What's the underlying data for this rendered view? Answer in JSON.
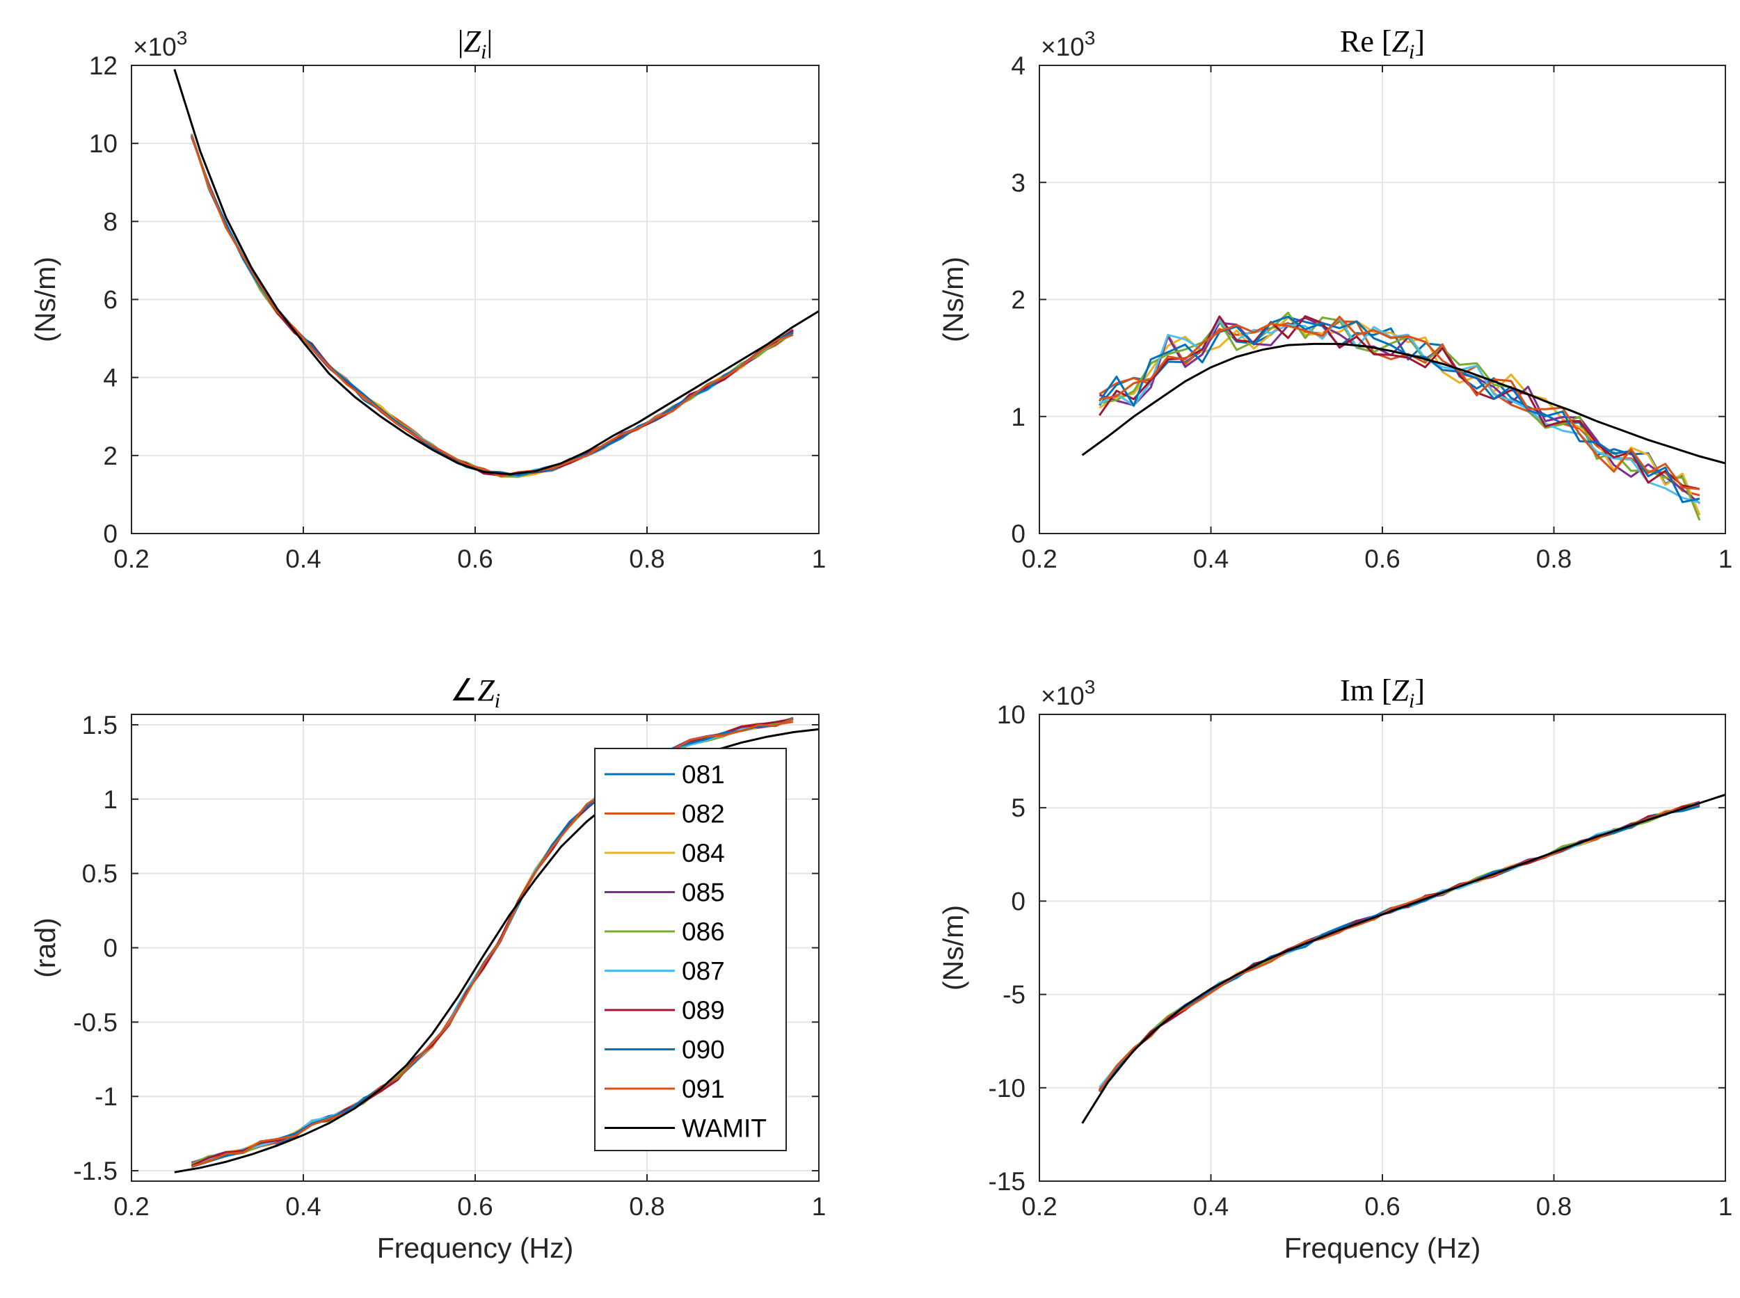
{
  "colors": {
    "081": "#0072BD",
    "082": "#D95319",
    "084": "#EDB120",
    "085": "#7E2F8E",
    "086": "#77AC30",
    "087": "#4DBEEE",
    "089": "#A2142F",
    "090": "#0072BD",
    "091": "#D95319",
    "WAMIT": "#000000",
    "grid": "#e5e5e5",
    "axis": "#262626"
  },
  "legend": {
    "entries": [
      "081",
      "082",
      "084",
      "085",
      "086",
      "087",
      "089",
      "090",
      "091",
      "WAMIT"
    ]
  },
  "chart_data": [
    {
      "id": "abs",
      "type": "line",
      "title_parts": [
        "|",
        "Z",
        "i",
        "|"
      ],
      "xlabel": "",
      "ylabel": "(Ns/m)",
      "xlim": [
        0.2,
        1
      ],
      "ylim": [
        0,
        12
      ],
      "xticks": [
        "0.2",
        "0.4",
        "0.6",
        "0.8",
        "1"
      ],
      "xtick_values": [
        0.2,
        0.4,
        0.6,
        0.8,
        1
      ],
      "yticks": [
        "0",
        "2",
        "4",
        "6",
        "8",
        "10",
        "12"
      ],
      "ytick_values": [
        0,
        2,
        4,
        6,
        8,
        10,
        12
      ],
      "multiplier": {
        "base": "×10",
        "exp": "3"
      },
      "x": [
        0.27,
        0.29,
        0.31,
        0.33,
        0.35,
        0.37,
        0.39,
        0.41,
        0.43,
        0.45,
        0.47,
        0.49,
        0.51,
        0.53,
        0.55,
        0.57,
        0.59,
        0.61,
        0.63,
        0.65,
        0.67,
        0.69,
        0.71,
        0.73,
        0.75,
        0.77,
        0.79,
        0.81,
        0.83,
        0.85,
        0.87,
        0.89,
        0.91,
        0.93,
        0.95,
        0.97
      ],
      "measured": [
        10.2,
        8.9,
        7.9,
        7.1,
        6.3,
        5.7,
        5.2,
        4.8,
        4.3,
        3.9,
        3.5,
        3.2,
        2.85,
        2.55,
        2.25,
        1.95,
        1.75,
        1.6,
        1.52,
        1.52,
        1.58,
        1.68,
        1.85,
        2.05,
        2.25,
        2.5,
        2.7,
        2.95,
        3.2,
        3.5,
        3.75,
        4.0,
        4.3,
        4.6,
        4.9,
        5.15
      ],
      "wamit": {
        "x": [
          0.25,
          0.28,
          0.31,
          0.34,
          0.37,
          0.4,
          0.43,
          0.46,
          0.49,
          0.52,
          0.55,
          0.58,
          0.61,
          0.64,
          0.67,
          0.7,
          0.73,
          0.76,
          0.79,
          0.82,
          0.85,
          0.88,
          0.91,
          0.94,
          0.97,
          1.0
        ],
        "y": [
          11.9,
          9.8,
          8.1,
          6.8,
          5.75,
          4.9,
          4.1,
          3.5,
          3.0,
          2.55,
          2.15,
          1.8,
          1.58,
          1.52,
          1.6,
          1.8,
          2.1,
          2.5,
          2.85,
          3.25,
          3.65,
          4.05,
          4.45,
          4.85,
          5.3,
          5.7
        ]
      }
    },
    {
      "id": "re",
      "type": "line",
      "title_parts": [
        "Re [",
        "Z",
        "i",
        "]"
      ],
      "xlabel": "",
      "ylabel": "(Ns/m)",
      "xlim": [
        0.2,
        1
      ],
      "ylim": [
        0,
        4
      ],
      "xticks": [
        "0.2",
        "0.4",
        "0.6",
        "0.8",
        "1"
      ],
      "xtick_values": [
        0.2,
        0.4,
        0.6,
        0.8,
        1
      ],
      "yticks": [
        "0",
        "1",
        "2",
        "3",
        "4"
      ],
      "ytick_values": [
        0,
        1,
        2,
        3,
        4
      ],
      "multiplier": {
        "base": "×10",
        "exp": "3"
      },
      "x": [
        0.27,
        0.29,
        0.31,
        0.33,
        0.35,
        0.37,
        0.39,
        0.41,
        0.43,
        0.45,
        0.47,
        0.49,
        0.51,
        0.53,
        0.55,
        0.57,
        0.59,
        0.61,
        0.63,
        0.65,
        0.67,
        0.69,
        0.71,
        0.73,
        0.75,
        0.77,
        0.79,
        0.81,
        0.83,
        0.85,
        0.87,
        0.89,
        0.91,
        0.93,
        0.95,
        0.97
      ],
      "measured": [
        1.08,
        1.25,
        1.22,
        1.35,
        1.6,
        1.55,
        1.58,
        1.72,
        1.7,
        1.72,
        1.73,
        1.76,
        1.78,
        1.76,
        1.72,
        1.7,
        1.66,
        1.62,
        1.58,
        1.55,
        1.48,
        1.42,
        1.32,
        1.25,
        1.22,
        1.15,
        1.02,
        0.95,
        0.88,
        0.75,
        0.65,
        0.62,
        0.55,
        0.48,
        0.4,
        0.25
      ],
      "wamit": {
        "x": [
          0.25,
          0.28,
          0.31,
          0.34,
          0.37,
          0.4,
          0.43,
          0.46,
          0.49,
          0.52,
          0.55,
          0.58,
          0.61,
          0.64,
          0.67,
          0.7,
          0.73,
          0.76,
          0.79,
          0.82,
          0.85,
          0.88,
          0.91,
          0.94,
          0.97,
          1.0
        ],
        "y": [
          0.67,
          0.83,
          1.0,
          1.15,
          1.3,
          1.42,
          1.51,
          1.57,
          1.61,
          1.62,
          1.62,
          1.6,
          1.56,
          1.51,
          1.45,
          1.38,
          1.3,
          1.22,
          1.13,
          1.05,
          0.96,
          0.88,
          0.8,
          0.73,
          0.66,
          0.6
        ]
      }
    },
    {
      "id": "angle",
      "type": "line",
      "title_parts": [
        "∠",
        "Z",
        "i",
        ""
      ],
      "xlabel": "Frequency (Hz)",
      "ylabel": "(rad)",
      "xlim": [
        0.2,
        1
      ],
      "ylim": [
        -1.57,
        1.57
      ],
      "xticks": [
        "0.2",
        "0.4",
        "0.6",
        "0.8",
        "1"
      ],
      "xtick_values": [
        0.2,
        0.4,
        0.6,
        0.8,
        1
      ],
      "yticks": [
        "-1.5",
        "-1",
        "-0.5",
        "0",
        "0.5",
        "1",
        "1.5"
      ],
      "ytick_values": [
        -1.5,
        -1,
        -0.5,
        0,
        0.5,
        1,
        1.5
      ],
      "multiplier": null,
      "x": [
        0.27,
        0.29,
        0.31,
        0.33,
        0.35,
        0.37,
        0.39,
        0.41,
        0.43,
        0.45,
        0.47,
        0.49,
        0.51,
        0.53,
        0.55,
        0.57,
        0.59,
        0.61,
        0.63,
        0.65,
        0.67,
        0.69,
        0.71,
        0.73,
        0.75,
        0.77,
        0.79,
        0.81,
        0.83,
        0.85,
        0.87,
        0.89,
        0.91,
        0.93,
        0.95,
        0.97
      ],
      "measured": [
        -1.46,
        -1.42,
        -1.39,
        -1.37,
        -1.32,
        -1.3,
        -1.26,
        -1.18,
        -1.15,
        -1.1,
        -1.03,
        -0.95,
        -0.87,
        -0.76,
        -0.65,
        -0.5,
        -0.3,
        -0.12,
        0.05,
        0.3,
        0.52,
        0.68,
        0.83,
        0.95,
        1.05,
        1.12,
        1.2,
        1.28,
        1.33,
        1.38,
        1.41,
        1.44,
        1.47,
        1.49,
        1.51,
        1.53
      ],
      "wamit": {
        "x": [
          0.25,
          0.28,
          0.31,
          0.34,
          0.37,
          0.4,
          0.43,
          0.46,
          0.49,
          0.52,
          0.55,
          0.58,
          0.61,
          0.64,
          0.67,
          0.7,
          0.73,
          0.76,
          0.79,
          0.82,
          0.85,
          0.88,
          0.91,
          0.94,
          0.97,
          1.0
        ],
        "y": [
          -1.51,
          -1.48,
          -1.44,
          -1.39,
          -1.33,
          -1.26,
          -1.18,
          -1.08,
          -0.95,
          -0.79,
          -0.58,
          -0.33,
          -0.05,
          0.22,
          0.46,
          0.68,
          0.85,
          0.99,
          1.1,
          1.19,
          1.27,
          1.33,
          1.38,
          1.42,
          1.45,
          1.47
        ]
      }
    },
    {
      "id": "im",
      "type": "line",
      "title_parts": [
        "Im [",
        "Z",
        "i",
        "]"
      ],
      "xlabel": "Frequency (Hz)",
      "ylabel": "(Ns/m)",
      "xlim": [
        0.2,
        1
      ],
      "ylim": [
        -15,
        10
      ],
      "xticks": [
        "0.2",
        "0.4",
        "0.6",
        "0.8",
        "1"
      ],
      "xtick_values": [
        0.2,
        0.4,
        0.6,
        0.8,
        1
      ],
      "yticks": [
        "-15",
        "-10",
        "-5",
        "0",
        "5",
        "10"
      ],
      "ytick_values": [
        -15,
        -10,
        -5,
        0,
        5,
        10
      ],
      "multiplier": {
        "base": "×10",
        "exp": "3"
      },
      "x": [
        0.27,
        0.29,
        0.31,
        0.33,
        0.35,
        0.37,
        0.39,
        0.41,
        0.43,
        0.45,
        0.47,
        0.49,
        0.51,
        0.53,
        0.55,
        0.57,
        0.59,
        0.61,
        0.63,
        0.65,
        0.67,
        0.69,
        0.71,
        0.73,
        0.75,
        0.77,
        0.79,
        0.81,
        0.83,
        0.85,
        0.87,
        0.89,
        0.91,
        0.93,
        0.95,
        0.97
      ],
      "measured": [
        -10.1,
        -8.9,
        -7.9,
        -7.1,
        -6.3,
        -5.7,
        -5.1,
        -4.5,
        -4.0,
        -3.5,
        -3.1,
        -2.7,
        -2.3,
        -1.9,
        -1.55,
        -1.2,
        -0.85,
        -0.5,
        -0.2,
        0.15,
        0.45,
        0.8,
        1.1,
        1.45,
        1.8,
        2.1,
        2.45,
        2.8,
        3.1,
        3.45,
        3.75,
        4.05,
        4.4,
        4.7,
        4.95,
        5.2
      ],
      "wamit": {
        "x": [
          0.25,
          0.28,
          0.31,
          0.34,
          0.37,
          0.4,
          0.43,
          0.46,
          0.49,
          0.52,
          0.55,
          0.58,
          0.61,
          0.64,
          0.67,
          0.7,
          0.73,
          0.76,
          0.79,
          0.82,
          0.85,
          0.88,
          0.91,
          0.94,
          0.97,
          1.0
        ],
        "y": [
          -11.9,
          -9.7,
          -8.0,
          -6.7,
          -5.6,
          -4.7,
          -3.95,
          -3.25,
          -2.65,
          -2.1,
          -1.55,
          -1.05,
          -0.55,
          -0.05,
          0.45,
          0.95,
          1.45,
          1.95,
          2.45,
          2.95,
          3.45,
          3.9,
          4.35,
          4.8,
          5.25,
          5.7
        ]
      }
    }
  ]
}
